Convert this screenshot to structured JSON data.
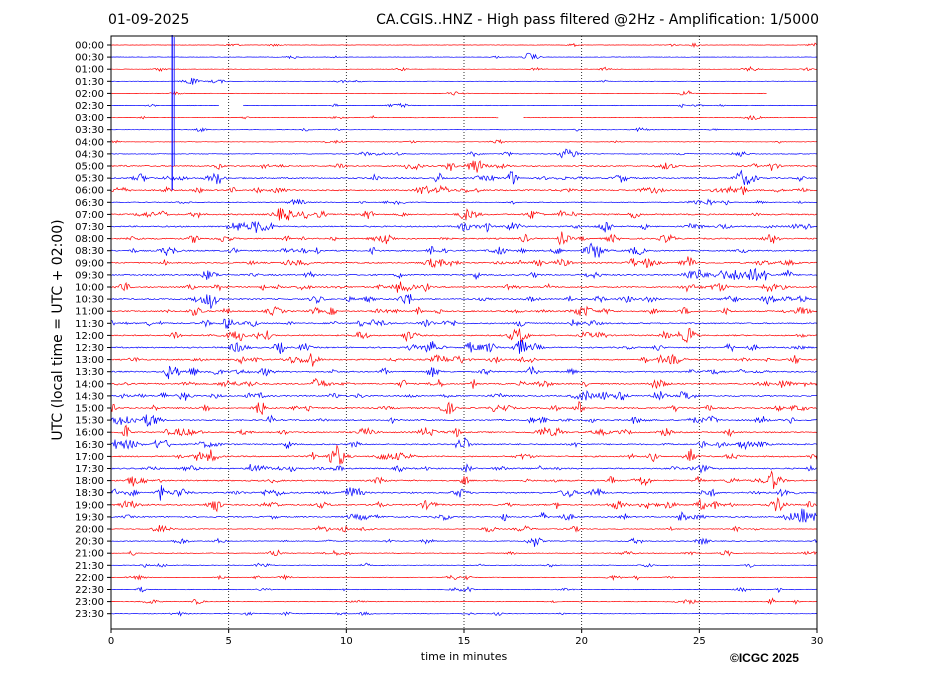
{
  "header": {
    "date": "01-09-2025",
    "title": "CA.CGIS..HNZ - High pass filtered @2Hz - Amplification: 1/5000"
  },
  "footer": {
    "copyright": "©ICGC 2025"
  },
  "colors": {
    "red": "#ff0000",
    "blue": "#0000ff",
    "grid": "#000000"
  },
  "chart_data": {
    "type": "line",
    "xlabel": "time in minutes",
    "ylabel": "UTC (local time = UTC + 02:00)",
    "xlim": [
      0,
      30
    ],
    "x_ticks": [
      "0",
      "5",
      "10",
      "15",
      "20",
      "25",
      "30"
    ],
    "y_ticks": [
      "00:00",
      "00:30",
      "01:00",
      "01:30",
      "02:00",
      "02:30",
      "03:00",
      "03:30",
      "04:00",
      "04:30",
      "05:00",
      "05:30",
      "06:00",
      "06:30",
      "07:00",
      "07:30",
      "08:00",
      "08:30",
      "09:00",
      "09:30",
      "10:00",
      "10:30",
      "11:00",
      "11:30",
      "12:00",
      "12:30",
      "13:00",
      "13:30",
      "14:00",
      "14:30",
      "15:00",
      "15:30",
      "16:00",
      "16:30",
      "17:00",
      "17:30",
      "18:00",
      "18:30",
      "19:00",
      "19:30",
      "20:00",
      "20:30",
      "21:00",
      "21:30",
      "22:00",
      "22:30",
      "23:00",
      "23:30"
    ],
    "grid_minutes": [
      5,
      10,
      15,
      20,
      25
    ],
    "trace_colors_alternate": [
      "red",
      "blue"
    ],
    "noise_level": [
      0.3,
      0.3,
      0.3,
      0.3,
      0.3,
      0.35,
      0.3,
      0.3,
      0.35,
      0.5,
      0.9,
      1.0,
      1.0,
      0.6,
      1.0,
      1.0,
      1.0,
      1.0,
      1.0,
      1.0,
      1.0,
      1.0,
      1.0,
      1.0,
      1.0,
      1.0,
      1.0,
      1.0,
      1.0,
      1.0,
      1.0,
      1.0,
      1.0,
      1.0,
      1.0,
      1.0,
      1.0,
      1.0,
      1.0,
      0.9,
      0.6,
      0.6,
      0.5,
      0.45,
      0.45,
      0.45,
      0.45,
      0.4
    ],
    "gaps": [
      {
        "trace": "02:30",
        "from_min": 4.6,
        "to_min": 5.6
      },
      {
        "trace": "03:00",
        "from_min": 16.5,
        "to_min": 17.5
      },
      {
        "trace": "02:00",
        "from_min": 27.9,
        "to_min": 30
      }
    ],
    "event": {
      "minute": 2.6,
      "from_trace": "00:00",
      "to_trace": "06:00"
    }
  }
}
